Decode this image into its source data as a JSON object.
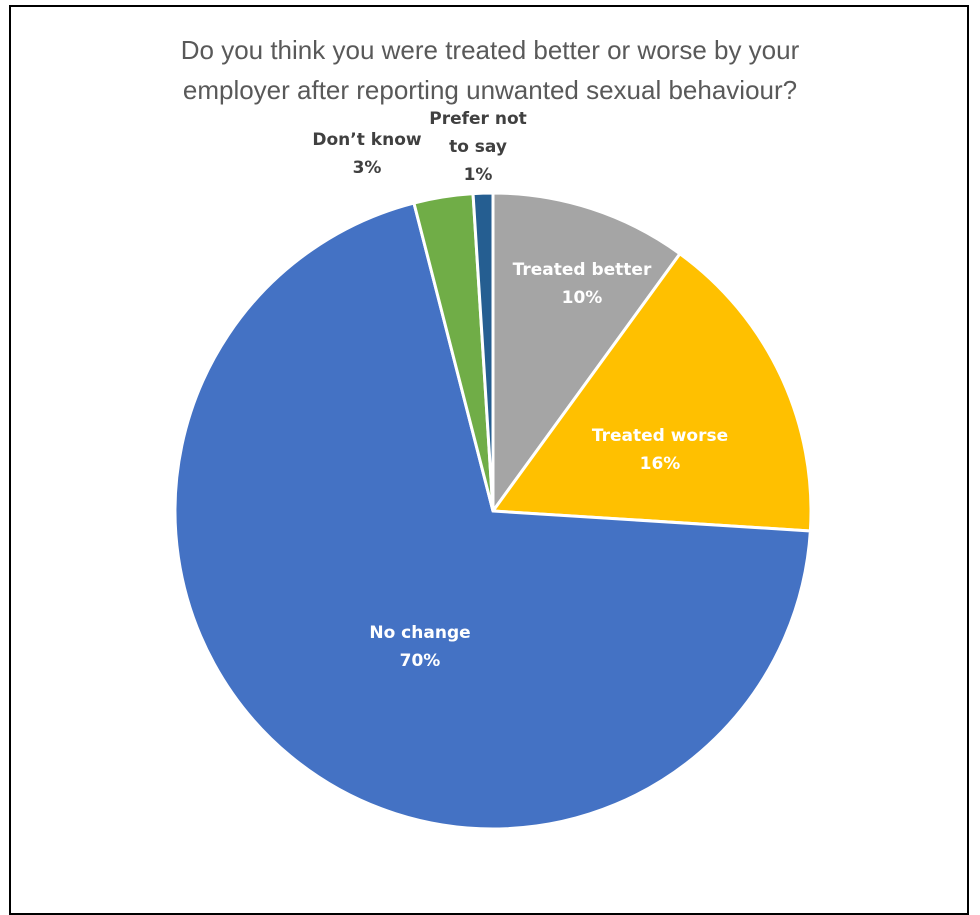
{
  "chart_data": {
    "type": "pie",
    "title_lines": [
      "Do you think you were treated better or worse by your",
      "employer after reporting unwanted sexual behaviour?"
    ],
    "slices": [
      {
        "label_lines": [
          "Treated better"
        ],
        "value_label": "10%",
        "value": 10,
        "color": "#A5A5A5",
        "label_color": "#ffffff",
        "label_placement": "inside"
      },
      {
        "label_lines": [
          "Treated worse"
        ],
        "value_label": "16%",
        "value": 16,
        "color": "#FFC000",
        "label_color": "#ffffff",
        "label_placement": "inside"
      },
      {
        "label_lines": [
          "No change"
        ],
        "value_label": "70%",
        "value": 70,
        "color": "#4472C4",
        "label_color": "#ffffff",
        "label_placement": "inside"
      },
      {
        "label_lines": [
          "Don’t know"
        ],
        "value_label": "3%",
        "value": 3,
        "color": "#70AD47",
        "label_color": "#404040",
        "label_placement": "outside"
      },
      {
        "label_lines": [
          "Prefer not",
          "to say"
        ],
        "value_label": "1%",
        "value": 1,
        "color": "#255E91",
        "label_color": "#404040",
        "label_placement": "outside"
      }
    ],
    "start": "12 o'clock",
    "direction": "clockwise",
    "legend": "none"
  }
}
